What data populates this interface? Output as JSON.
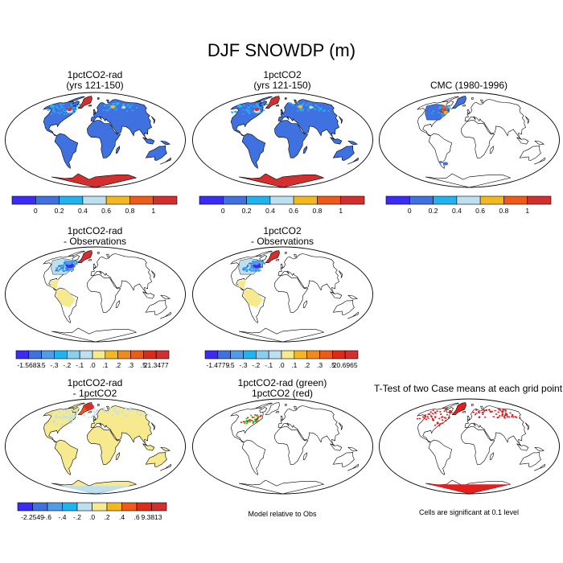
{
  "title": "DJF SNOWDP (m)",
  "palette": {
    "p6": [
      "#3a2bf5",
      "#3f71e0",
      "#1fb4ef",
      "#bde0f0",
      "#f3b820",
      "#ee5a18",
      "#d42f2f"
    ],
    "p12": [
      "#3a2bf5",
      "#3f71e0",
      "#4f9ce8",
      "#1fb4ef",
      "#8ad0ee",
      "#bde0f0",
      "#f7e98e",
      "#f3b820",
      "#f0891e",
      "#ee5a18",
      "#e02a18",
      "#d42f2f"
    ],
    "land": "#3f71e0",
    "light_yellow": "#f7e98e",
    "light_blue": "#bde0f0",
    "red": "#e01f1f",
    "green": "#16d016"
  },
  "panels": [
    {
      "lines": [
        "1pctCO2-rad",
        "(yrs 121-150)"
      ],
      "fill": "full"
    },
    {
      "lines": [
        "1pctCO2",
        "(yrs 121-150)"
      ],
      "fill": "full"
    },
    {
      "lines": [
        "CMC (1980-1996)"
      ],
      "fill": "obs"
    },
    {
      "lines": [
        "1pctCO2-rad",
        "- Observations"
      ],
      "fill": "diffobs"
    },
    {
      "lines": [
        "1pctCO2",
        "- Observations"
      ],
      "fill": "diffobs"
    },
    {
      "lines": [
        "1pctCO2-rad",
        "- 1pctCO2"
      ],
      "fill": "diffmodel"
    },
    {
      "lines": [
        "1pctCO2-rad (green)",
        "1pctCO2 (red)"
      ],
      "fill": "contour"
    },
    {
      "lines": [
        "T-Test of two Case means at each grid point"
      ],
      "fill": "ttest"
    }
  ],
  "colorbars": {
    "abs": {
      "labels": [
        "0",
        "0.2",
        "0.4",
        "0.6",
        "0.8",
        "1"
      ]
    },
    "diff1": {
      "labels": [
        "-1.5683",
        "-.5",
        "-.3",
        "-.2",
        "-.1",
        ".0",
        ".1",
        ".2",
        ".3",
        ".5",
        "21.3477"
      ]
    },
    "diff2": {
      "labels": [
        "-1.4779",
        "-.5",
        "-.3",
        "-.2",
        "-.1",
        ".0",
        ".1",
        ".2",
        ".3",
        ".5",
        "20.6965"
      ]
    },
    "diff3": {
      "labels": [
        "-2.2549",
        "-.6",
        "-.4",
        "-.2",
        ".0",
        ".2",
        ".4",
        ".6",
        "9.3813"
      ]
    }
  },
  "captions": {
    "contour": "Model relative to Obs",
    "ttest": "Cells are significant at 0.1 level"
  }
}
